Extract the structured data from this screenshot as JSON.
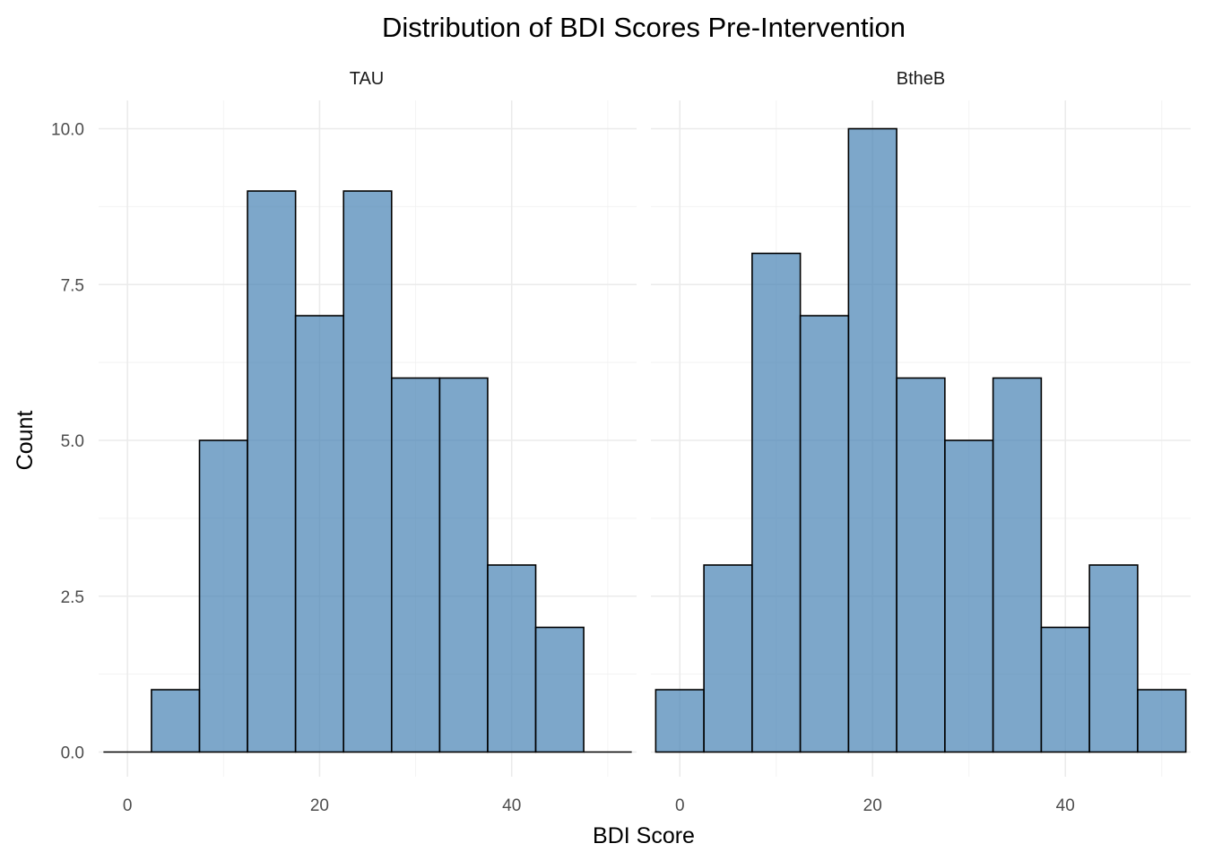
{
  "chart_data": {
    "type": "bar",
    "title": "Distribution of BDI Scores Pre-Intervention",
    "xlabel": "BDI Score",
    "ylabel": "Count",
    "bar_color": "#4682B4",
    "bar_opacity": 0.7,
    "outline_color": "#000000",
    "grid": true,
    "binwidth": 5,
    "xlim": [
      -3,
      53
    ],
    "ylim": [
      0,
      10
    ],
    "x_ticks": [
      0,
      20,
      40
    ],
    "y_ticks": [
      "0.0",
      "2.5",
      "5.0",
      "7.5",
      "10.0"
    ],
    "y_tick_values": [
      0,
      2.5,
      5,
      7.5,
      10
    ],
    "panels": [
      {
        "name": "TAU",
        "bins": [
          {
            "x": 0,
            "count": 0
          },
          {
            "x": 5,
            "count": 1
          },
          {
            "x": 10,
            "count": 5
          },
          {
            "x": 15,
            "count": 9
          },
          {
            "x": 20,
            "count": 7
          },
          {
            "x": 25,
            "count": 9
          },
          {
            "x": 30,
            "count": 6
          },
          {
            "x": 35,
            "count": 6
          },
          {
            "x": 40,
            "count": 3
          },
          {
            "x": 45,
            "count": 2
          },
          {
            "x": 50,
            "count": 0
          }
        ]
      },
      {
        "name": "BtheB",
        "bins": [
          {
            "x": 0,
            "count": 1
          },
          {
            "x": 5,
            "count": 3
          },
          {
            "x": 10,
            "count": 8
          },
          {
            "x": 15,
            "count": 7
          },
          {
            "x": 20,
            "count": 10
          },
          {
            "x": 25,
            "count": 6
          },
          {
            "x": 30,
            "count": 5
          },
          {
            "x": 35,
            "count": 6
          },
          {
            "x": 40,
            "count": 2
          },
          {
            "x": 45,
            "count": 3
          },
          {
            "x": 50,
            "count": 1
          }
        ]
      }
    ]
  }
}
